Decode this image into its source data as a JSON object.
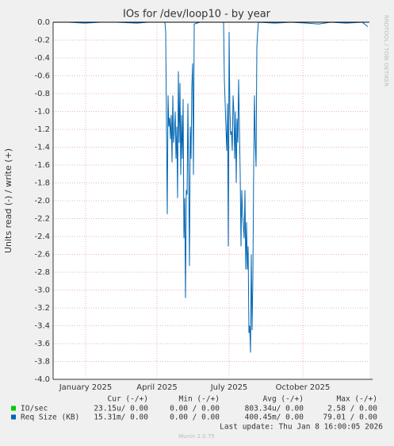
{
  "chart_data": {
    "type": "line",
    "title": "IOs for /dev/loop10 - by year",
    "y_label": "Units read (-) / write (+)",
    "side_text": "RRDTOOL / TOBI OETIKER",
    "footer": "Munin 2.0.75",
    "last_update": "Last update: Thu Jan  8 16:00:05 2026",
    "xlim": [
      0,
      399
    ],
    "xticks": [
      {
        "value": 41,
        "label": "January 2025"
      },
      {
        "value": 131,
        "label": "April 2025"
      },
      {
        "value": 222,
        "label": "July 2025"
      },
      {
        "value": 315,
        "label": "October 2025"
      }
    ],
    "ylim": [
      -4.0,
      0.0
    ],
    "yticks": [
      {
        "value": 0,
        "label": "0.0"
      },
      -0.2,
      -0.4,
      -0.6,
      -0.8,
      {
        "value": -1,
        "label": "-1.0"
      },
      -1.2,
      -1.4,
      -1.6,
      -1.8,
      {
        "value": -2,
        "label": "-2.0"
      },
      -2.2,
      -2.4,
      -2.6,
      -2.8,
      {
        "value": -3,
        "label": "-3.0"
      },
      -3.2,
      -3.4,
      -3.6,
      -3.8,
      {
        "value": -4,
        "label": "-4.0"
      }
    ],
    "grid": true,
    "series": [
      {
        "name": "IO/sec",
        "color": "#00cc00",
        "x": [
          0,
          397
        ],
        "values": [
          0,
          0
        ]
      },
      {
        "name": "Req Size (KB)",
        "color": "#0066b3",
        "x": [
          0,
          20,
          40,
          60,
          80,
          106,
          120,
          141,
          142,
          144,
          145,
          146,
          147,
          148,
          149,
          150,
          151,
          152,
          153,
          154,
          155,
          156,
          157,
          158,
          159,
          160,
          161,
          162,
          163,
          164,
          165,
          166,
          167,
          168,
          169,
          170,
          171,
          172,
          173,
          174,
          175,
          176,
          177,
          178,
          185,
          200,
          215,
          216,
          218,
          219,
          220,
          221,
          222,
          223,
          224,
          225,
          226,
          227,
          228,
          229,
          230,
          231,
          232,
          233,
          234,
          235,
          236,
          237,
          238,
          239,
          240,
          241,
          242,
          243,
          244,
          245,
          246,
          247,
          248,
          249,
          250,
          251,
          252,
          253,
          254,
          255,
          256,
          257,
          258,
          259,
          280,
          300,
          320,
          335,
          350,
          370,
          390,
          397
        ],
        "values": [
          0,
          0,
          -0.01,
          0,
          0,
          -0.01,
          0,
          0,
          -0.11,
          -2.15,
          -0.82,
          -1.17,
          -1.07,
          -1.31,
          -1.04,
          -1.57,
          -0.82,
          -1.35,
          -1.22,
          -1.0,
          -1.53,
          -1.17,
          -1.97,
          -0.55,
          -1.35,
          -0.68,
          -1.71,
          -1.04,
          -1.53,
          -0.86,
          -2.42,
          -1.97,
          -3.09,
          -1.88,
          -1.93,
          -0.91,
          -1.75,
          -2.73,
          -1.17,
          -1.53,
          -0.73,
          -0.46,
          -1.71,
          -0.02,
          0,
          0,
          0,
          -0.64,
          -1.17,
          -1.44,
          -0.91,
          -2.51,
          -0.11,
          -1.0,
          -1.26,
          -1.22,
          -1.44,
          -0.82,
          -1.0,
          -1.53,
          -1.0,
          -1.8,
          -1.08,
          -1.35,
          -0.64,
          -1.17,
          -1.71,
          -2.51,
          -1.88,
          -2.15,
          -2.28,
          -2.42,
          -1.88,
          -2.77,
          -2.24,
          -2.77,
          -2.51,
          -3.48,
          -3.4,
          -3.7,
          -2.6,
          -3.45,
          -2.85,
          -1.62,
          -0.82,
          -1.35,
          -1.62,
          -0.28,
          -0.11,
          0,
          -0.01,
          0,
          -0.01,
          -0.02,
          0,
          -0.01,
          0,
          -0.05
        ]
      }
    ],
    "legend_table": {
      "headers": [
        "Cur (-/+)",
        "Min (-/+)",
        "Avg (-/+)",
        "Max (-/+)"
      ],
      "rows": [
        [
          "23.15u/ 0.00",
          "0.00 / 0.00",
          "803.34u/ 0.00",
          "2.58 / 0.00"
        ],
        [
          "15.31m/ 0.00",
          "0.00 / 0.00",
          "400.45m/ 0.00",
          "79.01 / 0.00"
        ]
      ]
    }
  }
}
